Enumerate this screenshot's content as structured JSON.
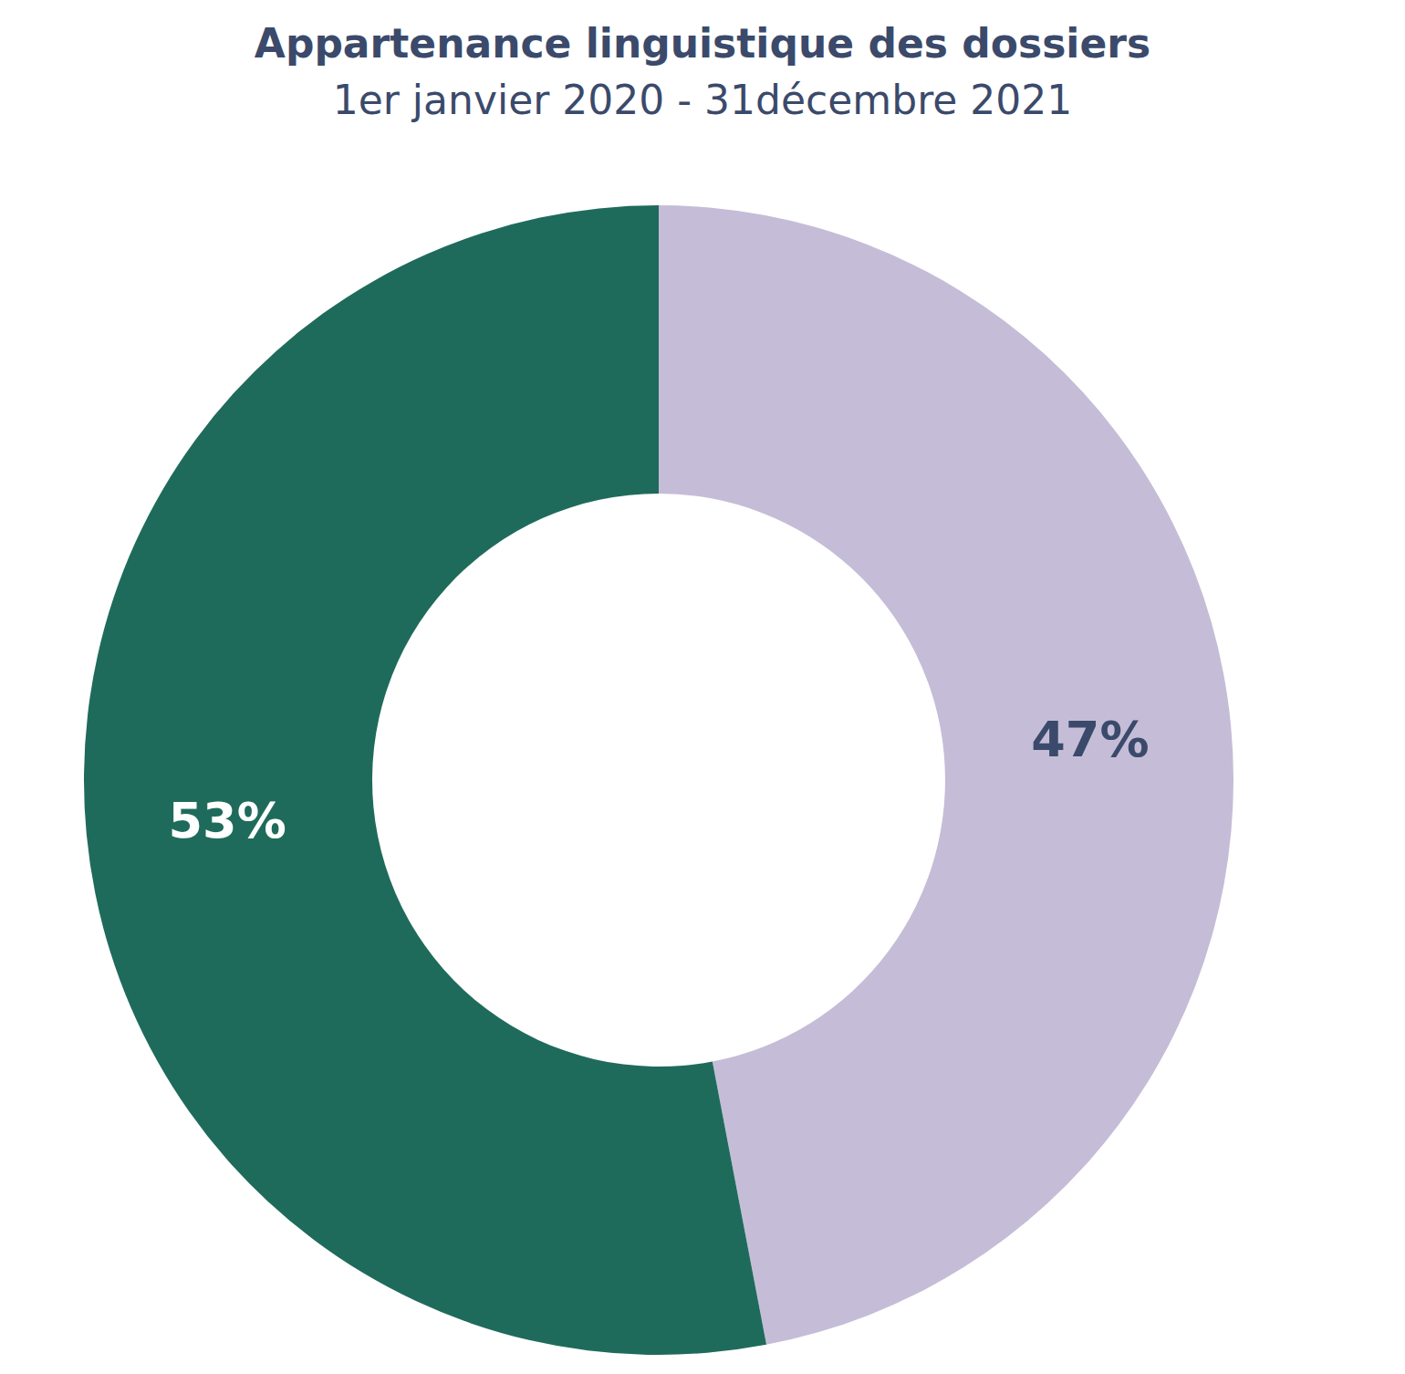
{
  "chart_data": {
    "type": "pie",
    "title": "Appartenance linguistique des dossiers",
    "subtitle": "1er janvier 2020 - 31décembre 2021",
    "values": [
      47,
      53
    ],
    "value_labels": [
      "47%",
      "53%"
    ],
    "colors": [
      "#c5bdd7",
      "#1f6b5b"
    ],
    "data_labels": true,
    "legend": false
  }
}
